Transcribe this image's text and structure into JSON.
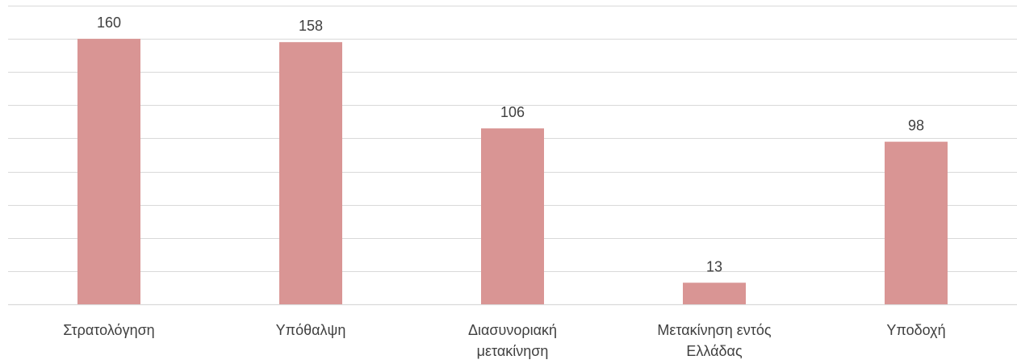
{
  "chart_data": {
    "type": "bar",
    "categories": [
      [
        "Στρατολόγηση"
      ],
      [
        "Υπόθαλψη"
      ],
      [
        "Διασυνοριακή",
        "μετακίνηση"
      ],
      [
        "Μετακίνηση εντός",
        "Ελλάδας"
      ],
      [
        "Υποδοχή"
      ]
    ],
    "values": [
      160,
      158,
      106,
      13,
      98
    ],
    "ylim": [
      0,
      180
    ],
    "y_grid_step": 20,
    "grid": true,
    "legend": "none",
    "colors": {
      "bar": "#d99594",
      "grid": "#d9d9d9",
      "text": "#404040"
    }
  }
}
